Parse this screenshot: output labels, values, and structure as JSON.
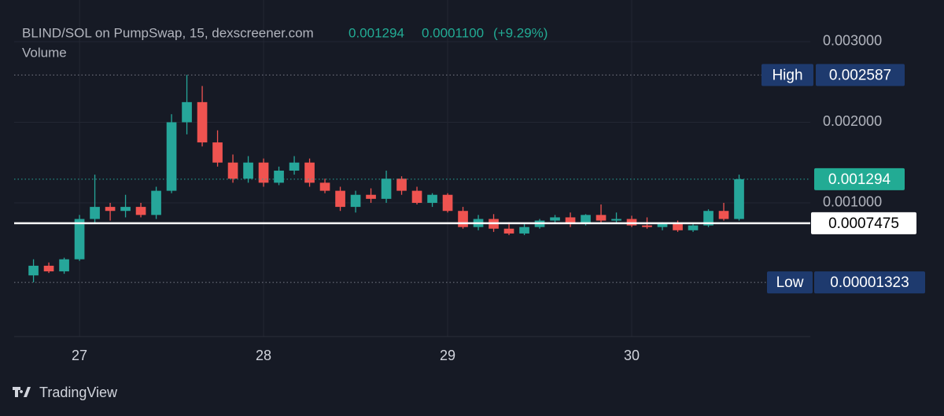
{
  "chart_data": {
    "type": "candlestick",
    "title": "BLIND/SOL on PumpSwap, 15, dexscreener.com",
    "last_price": 0.001294,
    "change": {
      "value": 0.00011,
      "label": "0.0001100"
    },
    "change_percent": {
      "value": 9.29,
      "label": "(+9.29%)"
    },
    "volume_label": "Volume",
    "up_color": "#26a69a",
    "down_color": "#ef5350",
    "x": [
      26.75,
      26.8333,
      26.9167,
      27,
      27.0833,
      27.1667,
      27.25,
      27.3333,
      27.4167,
      27.5,
      27.5833,
      27.6667,
      27.75,
      27.8333,
      27.9167,
      28,
      28.0833,
      28.1667,
      28.25,
      28.3333,
      28.4167,
      28.5,
      28.5833,
      28.6667,
      28.75,
      28.8333,
      28.9167,
      29,
      29.0833,
      29.1667,
      29.25,
      29.3333,
      29.4167,
      29.5,
      29.5833,
      29.6667,
      29.75,
      29.8333,
      29.9167,
      30,
      30.0833,
      30.1667,
      30.25,
      30.3333,
      30.4167,
      30.5,
      30.5833
    ],
    "open": [
      0.0001,
      0.00022,
      0.00015,
      0.0003,
      0.0008,
      0.00095,
      0.0009,
      0.00095,
      0.00085,
      0.00115,
      0.002,
      0.00225,
      0.00175,
      0.0015,
      0.0013,
      0.0015,
      0.00125,
      0.0014,
      0.0015,
      0.00125,
      0.00115,
      0.00095,
      0.0011,
      0.00105,
      0.0013,
      0.00115,
      0.001,
      0.0011,
      0.0009,
      0.0007,
      0.0008,
      0.00068,
      0.00062,
      0.0007,
      0.00078,
      0.00082,
      0.00074,
      0.00085,
      0.00078,
      0.0008,
      0.00072,
      0.0007,
      0.00074,
      0.00066,
      0.00072,
      0.0009,
      0.0008
    ],
    "high": [
      0.0003,
      0.00026,
      0.00032,
      0.00085,
      0.00135,
      0.001,
      0.0011,
      0.001,
      0.0012,
      0.0021,
      0.002587,
      0.00245,
      0.0019,
      0.0016,
      0.00158,
      0.00155,
      0.00145,
      0.00158,
      0.00155,
      0.0013,
      0.0012,
      0.00115,
      0.00118,
      0.0014,
      0.00133,
      0.0012,
      0.00112,
      0.00112,
      0.00095,
      0.00085,
      0.00086,
      0.00076,
      0.00074,
      0.0008,
      0.00085,
      0.00088,
      0.00086,
      0.00098,
      0.00088,
      0.00084,
      0.00082,
      0.00076,
      0.00078,
      0.00074,
      0.00092,
      0.001,
      0.00135
    ],
    "low": [
      1.323e-05,
      0.00013,
      0.00012,
      0.00028,
      0.00075,
      0.00078,
      0.00082,
      0.00082,
      0.0008,
      0.00112,
      0.00185,
      0.0017,
      0.00145,
      0.00125,
      0.00125,
      0.0012,
      0.00122,
      0.00135,
      0.0012,
      0.00112,
      0.0009,
      0.00088,
      0.001,
      0.001,
      0.0011,
      0.00098,
      0.00095,
      0.00088,
      0.00068,
      0.00066,
      0.00064,
      0.0006,
      0.0006,
      0.00068,
      0.00074,
      0.0007,
      0.00072,
      0.00074,
      0.00074,
      0.0007,
      0.00068,
      0.00066,
      0.00064,
      0.00064,
      0.0007,
      0.00078,
      0.00078
    ],
    "close": [
      0.00022,
      0.00015,
      0.0003,
      0.0008,
      0.00095,
      0.0009,
      0.00095,
      0.00085,
      0.00115,
      0.002,
      0.00225,
      0.00175,
      0.0015,
      0.0013,
      0.0015,
      0.00125,
      0.0014,
      0.0015,
      0.00125,
      0.00115,
      0.00095,
      0.0011,
      0.00105,
      0.0013,
      0.00115,
      0.001,
      0.0011,
      0.0009,
      0.0007,
      0.0008,
      0.00068,
      0.00062,
      0.0007,
      0.00078,
      0.00082,
      0.00074,
      0.00085,
      0.00078,
      0.0008,
      0.00072,
      0.0007,
      0.00074,
      0.00066,
      0.00072,
      0.0009,
      0.0008,
      0.001294
    ],
    "xlim": [
      26.645,
      30.97
    ],
    "xticks": [
      27,
      28,
      29,
      30
    ],
    "ylim": [
      -0.000659,
      0.003517
    ],
    "yticks": [
      {
        "value": 0.001,
        "label": "0.001000"
      },
      {
        "value": 0.002,
        "label": "0.002000"
      },
      {
        "value": 0.003,
        "label": "0.003000"
      }
    ],
    "grid": true,
    "high_marker": {
      "label": "High",
      "value": 0.002587
    },
    "low_marker": {
      "label": "Low",
      "value": 1.323e-05
    },
    "price_line": 0.0007475
  },
  "branding": "TradingView"
}
